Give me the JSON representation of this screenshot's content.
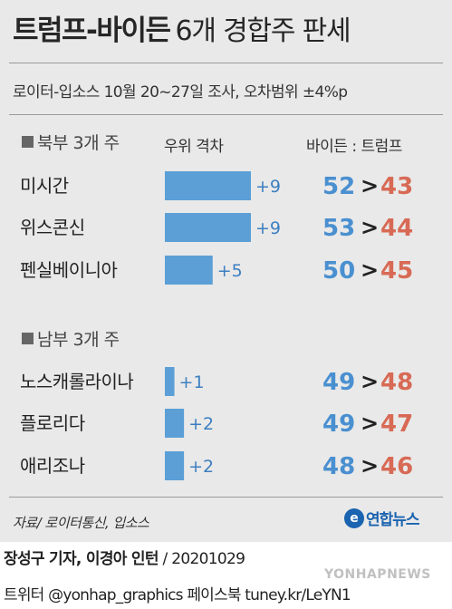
{
  "title_main": "트럼프-바이든",
  "title_rest": "6개 경합주 판세",
  "subtitle": "로이터-입소스 10월 20~27일 조사, 오차범위 ±4%p",
  "column_headers": {
    "gap": "우위 격차",
    "candidates": "바이든 : 트럼프"
  },
  "sections": [
    {
      "label": "북부 3개 주"
    },
    {
      "label": "남부 3개 주"
    }
  ],
  "chart_data": {
    "type": "bar",
    "categories": [
      "미시간",
      "위스콘신",
      "펜실베이니아",
      "노스캐롤라이나",
      "플로리다",
      "애리조나"
    ],
    "groups": [
      "북부 3개 주",
      "북부 3개 주",
      "북부 3개 주",
      "남부 3개 주",
      "남부 3개 주",
      "남부 3개 주"
    ],
    "gap_values": [
      9,
      9,
      5,
      1,
      2,
      2
    ],
    "gap_labels": [
      "+9",
      "+9",
      "+5",
      "+1",
      "+2",
      "+2"
    ],
    "series": [
      {
        "name": "바이든",
        "values": [
          52,
          53,
          50,
          49,
          49,
          48
        ]
      },
      {
        "name": "트럼프",
        "values": [
          43,
          44,
          45,
          48,
          47,
          46
        ]
      }
    ],
    "comparison_symbol": ">",
    "xlim": [
      0,
      9
    ],
    "colors": {
      "bar": "#5b9fd6",
      "biden": "#4a90d0",
      "trump": "#d86a55"
    }
  },
  "footer": {
    "source": "자료/ 로이터통신, 입소스",
    "logo_text": "연합뉴스",
    "logo_mark": "e",
    "credit_names": "장성구 기자, 이경아 인턴",
    "credit_sep": " / ",
    "credit_date": "20201029",
    "social": "트위터 @yonhap_graphics  페이스북 tuney.kr/LeYN1",
    "watermark": "YONHAPNEWS"
  }
}
